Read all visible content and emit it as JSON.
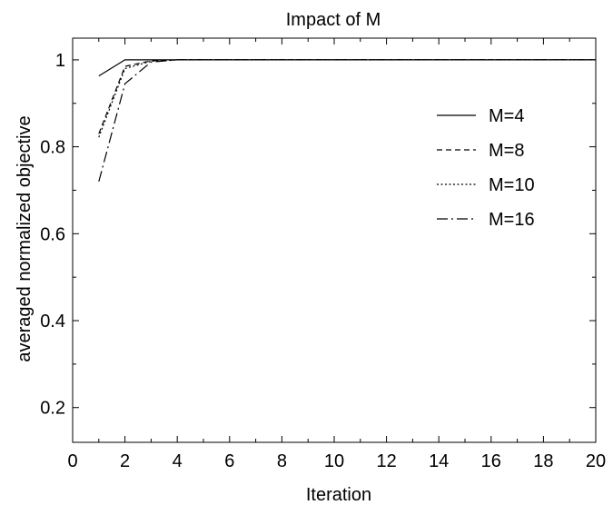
{
  "chart_data": {
    "type": "line",
    "title": "Impact of M",
    "xlabel": "Iteration",
    "ylabel": "averaged normalized objective",
    "xlim": [
      0,
      20
    ],
    "ylim": [
      0.12,
      1.05
    ],
    "xticks": [
      0,
      2,
      4,
      6,
      8,
      10,
      12,
      14,
      16,
      18,
      20
    ],
    "xtick_labels": [
      "0",
      "2",
      "4",
      "6",
      "8",
      "10",
      "12",
      "14",
      "16",
      "18",
      "20"
    ],
    "yticks": [
      0.2,
      0.4,
      0.6,
      0.8,
      1.0
    ],
    "ytick_labels": [
      "0.2",
      "0.4",
      "0.6",
      "0.8",
      "1"
    ],
    "grid": false,
    "legend_position": "right, upper-middle",
    "x": [
      1,
      2,
      3,
      4,
      5,
      6,
      7,
      8,
      9,
      10,
      11,
      12,
      13,
      14,
      15,
      16,
      17,
      18,
      19,
      20
    ],
    "series": [
      {
        "name": "M=4",
        "dash": "solid",
        "values": [
          0.963,
          1.0,
          1.0,
          1.0,
          1.0,
          1.0,
          1.0,
          1.0,
          1.0,
          1.0,
          1.0,
          1.0,
          1.0,
          1.0,
          1.0,
          1.0,
          1.0,
          1.0,
          1.0,
          1.0
        ]
      },
      {
        "name": "M=8",
        "dash": "dashed",
        "values": [
          0.83,
          0.985,
          0.998,
          1.0,
          1.0,
          1.0,
          1.0,
          1.0,
          1.0,
          1.0,
          1.0,
          1.0,
          1.0,
          1.0,
          1.0,
          1.0,
          1.0,
          1.0,
          1.0,
          1.0
        ]
      },
      {
        "name": "M=10",
        "dash": "dotted",
        "values": [
          0.822,
          0.98,
          0.997,
          1.0,
          1.0,
          1.0,
          1.0,
          1.0,
          1.0,
          1.0,
          1.0,
          1.0,
          1.0,
          1.0,
          1.0,
          1.0,
          1.0,
          1.0,
          1.0,
          1.0
        ]
      },
      {
        "name": "M=16",
        "dash": "dashdot",
        "values": [
          0.72,
          0.945,
          0.995,
          1.0,
          1.0,
          1.0,
          1.0,
          1.0,
          1.0,
          1.0,
          1.0,
          1.0,
          1.0,
          1.0,
          1.0,
          1.0,
          1.0,
          1.0,
          1.0,
          1.0
        ]
      }
    ]
  }
}
